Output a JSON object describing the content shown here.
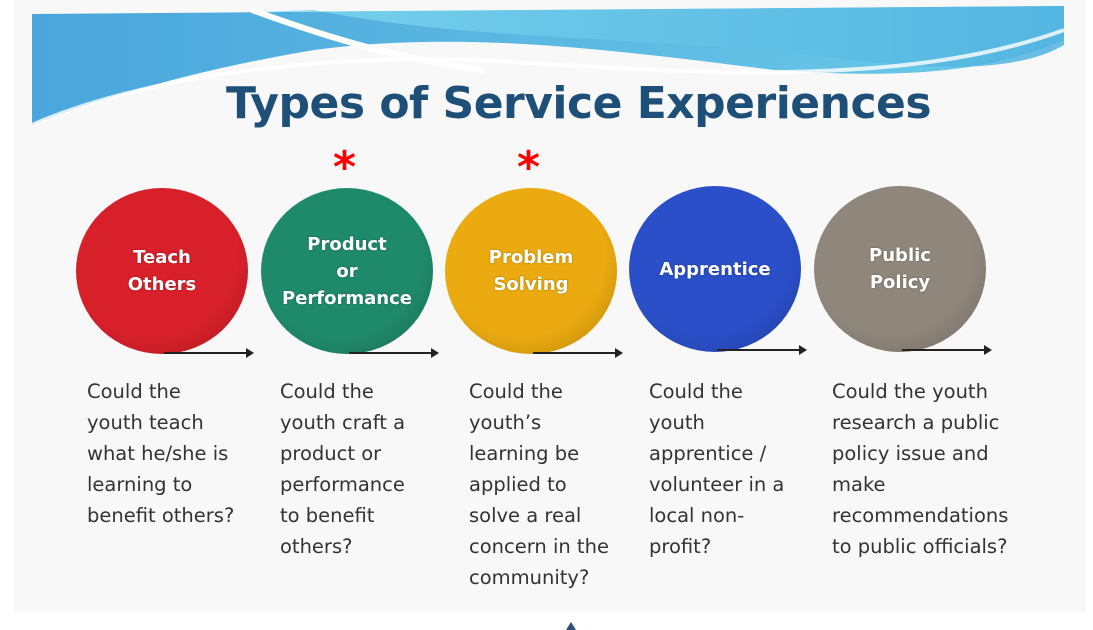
{
  "title": "Types of Service Experiences",
  "star_symbol": "*",
  "colors": {
    "title": "#1e4f78",
    "star": "#ff0000",
    "banner": "#5ab8e0"
  },
  "items": [
    {
      "label": "Teach\nOthers",
      "color": "#d8202a",
      "starred": false,
      "description": "Could the\nyouth teach\nwhat he/she is\nlearning to\nbenefit others?"
    },
    {
      "label": "Product\nor\nPerformance",
      "color": "#1f8a6a",
      "starred": true,
      "description": "Could the\nyouth craft a\nproduct or\nperformance\nto benefit\nothers?"
    },
    {
      "label": "Problem\nSolving",
      "color": "#eaaa10",
      "starred": true,
      "description": "Could the\nyouth’s\nlearning be\napplied to\nsolve a real\nconcern in the\ncommunity?"
    },
    {
      "label": "Apprentice",
      "color": "#2a4fc8",
      "starred": false,
      "description": "Could the\nyouth\napprentice /\nvolunteer in a\nlocal non-\nprofit?"
    },
    {
      "label": "Public\nPolicy",
      "color": "#8f877c",
      "starred": false,
      "description": "Could the youth\nresearch a public\npolicy issue and\nmake\nrecommendations\nto public officials?"
    }
  ]
}
